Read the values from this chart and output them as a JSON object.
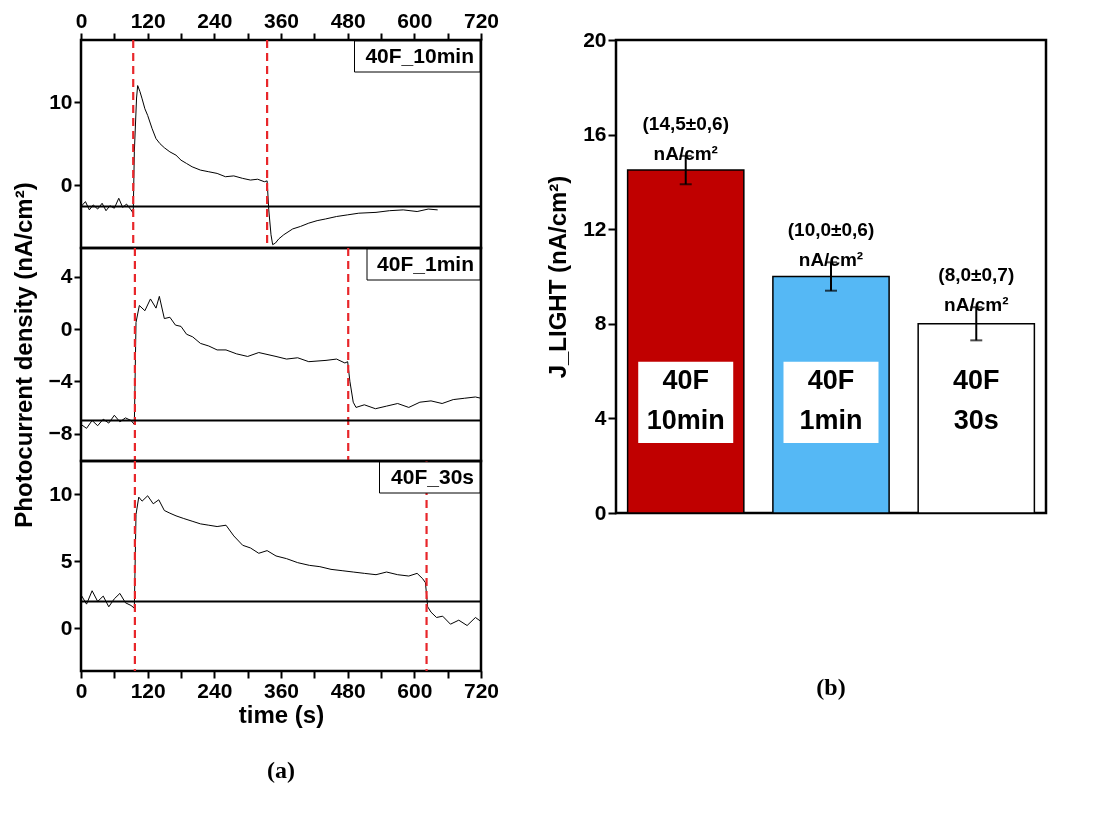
{
  "chart_data": [
    {
      "type": "line",
      "xlim": [
        0,
        720
      ],
      "ylim": [
        -7.6,
        17.5
      ],
      "yticks": [
        0,
        10
      ],
      "x2lim": [
        0,
        720
      ],
      "x2ticks": [
        0,
        {
          "value": 60,
          "label": null
        },
        120,
        {
          "value": 180,
          "label": null
        },
        240,
        {
          "value": 300,
          "label": null
        },
        360,
        {
          "value": 420,
          "label": null
        },
        480,
        {
          "value": 540,
          "label": null
        },
        600,
        {
          "value": 660,
          "label": null
        },
        720
      ],
      "tick_labels": "y",
      "grid": false,
      "line_style": "solid",
      "annotations": [
        "40F_10min"
      ],
      "ref_lines": [
        {
          "axis": "x",
          "value": 94,
          "color": "#e8262a",
          "line_style": "dashed"
        },
        {
          "axis": "x",
          "value": 335,
          "color": "#e8262a",
          "line_style": "dashed"
        },
        {
          "axis": "y",
          "value": -2.6,
          "color": "#000000",
          "line_style": "solid"
        }
      ],
      "series": [
        {
          "color": "#000000",
          "x": [
            0,
            8,
            15,
            22,
            30,
            38,
            45,
            52,
            60,
            68,
            75,
            82,
            90,
            94,
            96,
            100,
            102,
            106,
            110,
            115,
            120,
            128,
            135,
            142,
            150,
            160,
            171,
            180,
            190,
            200,
            215,
            230,
            245,
            260,
            275,
            291,
            305,
            318,
            330,
            335,
            338,
            342,
            345,
            350,
            356,
            365,
            381,
            395,
            410,
            425,
            440,
            460,
            480,
            500,
            531,
            555,
            580,
            605,
            625,
            642
          ],
          "values": [
            -2.6,
            -2.0,
            -3.0,
            -2.4,
            -2.9,
            -2.2,
            -3.1,
            -2.5,
            -2.8,
            -1.6,
            -2.7,
            -2.3,
            -3.0,
            -3.4,
            4.0,
            10.5,
            12.0,
            11.3,
            10.4,
            9.2,
            8.4,
            6.8,
            5.6,
            5.0,
            4.5,
            4.0,
            3.6,
            3.0,
            2.6,
            2.2,
            1.8,
            1.6,
            1.4,
            1.0,
            1.1,
            0.8,
            0.6,
            0.7,
            0.4,
            0.5,
            -3.0,
            -6.0,
            -7.2,
            -7.0,
            -6.5,
            -6.0,
            -5.3,
            -5.0,
            -4.6,
            -4.3,
            -4.1,
            -3.8,
            -3.6,
            -3.4,
            -3.3,
            -3.1,
            -3.0,
            -3.2,
            -2.9,
            -3.0
          ]
        }
      ]
    },
    {
      "type": "line",
      "xlim": [
        0,
        720
      ],
      "ylim": [
        -10.1,
        6.2
      ],
      "yticks": [
        -8,
        -4,
        0,
        4
      ],
      "tick_labels": "y",
      "grid": false,
      "line_style": "solid",
      "ylabel": "Photocurrent density (nA/cm²)",
      "annotations": [
        "40F_1min"
      ],
      "ref_lines": [
        {
          "axis": "x",
          "value": 97,
          "color": "#e8262a",
          "line_style": "dashed"
        },
        {
          "axis": "x",
          "value": 481,
          "color": "#e8262a",
          "line_style": "dashed"
        },
        {
          "axis": "y",
          "value": -7.0,
          "color": "#000000",
          "line_style": "solid"
        }
      ],
      "series": [
        {
          "color": "#000000",
          "x": [
            0,
            10,
            20,
            30,
            40,
            50,
            60,
            70,
            80,
            90,
            96,
            99,
            105,
            115,
            125,
            135,
            141,
            150,
            160,
            170,
            180,
            190,
            201,
            215,
            230,
            245,
            261,
            280,
            300,
            320,
            351,
            370,
            390,
            410,
            441,
            460,
            475,
            480,
            484,
            490,
            495,
            510,
            530,
            550,
            570,
            590,
            610,
            630,
            650,
            670,
            690,
            710,
            720
          ],
          "values": [
            -7.3,
            -7.6,
            -7.0,
            -7.4,
            -6.9,
            -7.2,
            -6.6,
            -7.1,
            -6.8,
            -7.0,
            -7.3,
            0.5,
            1.8,
            1.4,
            2.3,
            1.6,
            2.5,
            0.8,
            0.9,
            0.3,
            0.2,
            -0.4,
            -0.6,
            -1.1,
            -1.3,
            -1.6,
            -1.6,
            -1.9,
            -2.1,
            -1.8,
            -2.1,
            -2.3,
            -2.2,
            -2.5,
            -2.4,
            -2.3,
            -2.6,
            -2.5,
            -4.0,
            -5.6,
            -6.0,
            -5.8,
            -6.1,
            -5.9,
            -5.7,
            -6.0,
            -5.6,
            -5.5,
            -5.7,
            -5.4,
            -5.3,
            -5.2,
            -5.3
          ]
        }
      ]
    },
    {
      "type": "line",
      "xlim": [
        0,
        720
      ],
      "ylim": [
        -3.2,
        12.5
      ],
      "yticks": [
        0,
        5,
        10
      ],
      "xticks": [
        0,
        {
          "value": 60,
          "label": null
        },
        120,
        {
          "value": 180,
          "label": null
        },
        240,
        {
          "value": 300,
          "label": null
        },
        360,
        {
          "value": 420,
          "label": null
        },
        480,
        {
          "value": 540,
          "label": null
        },
        600,
        {
          "value": 660,
          "label": null
        },
        720
      ],
      "xlabel": "time (s)",
      "grid": false,
      "line_style": "solid",
      "annotations": [
        "40F_30s",
        "(a)"
      ],
      "ref_lines": [
        {
          "axis": "x",
          "value": 97,
          "color": "#e8262a",
          "line_style": "dashed"
        },
        {
          "axis": "x",
          "value": 622,
          "color": "#e8262a",
          "line_style": "dashed"
        },
        {
          "axis": "y",
          "value": 2.0,
          "color": "#000000",
          "line_style": "solid"
        }
      ],
      "series": [
        {
          "color": "#000000",
          "x": [
            0,
            10,
            20,
            30,
            40,
            50,
            60,
            70,
            80,
            90,
            96,
            99,
            104,
            110,
            120,
            130,
            140,
            150,
            160,
            171,
            185,
            200,
            215,
            230,
            245,
            261,
            275,
            291,
            305,
            320,
            335,
            351,
            370,
            390,
            411,
            430,
            450,
            470,
            490,
            510,
            531,
            550,
            570,
            590,
            605,
            615,
            620,
            624,
            630,
            640,
            651,
            665,
            680,
            695,
            710,
            720
          ],
          "values": [
            2.5,
            1.8,
            2.8,
            2.0,
            2.4,
            1.6,
            2.2,
            2.6,
            1.9,
            1.7,
            1.5,
            8.5,
            9.8,
            9.5,
            9.9,
            9.3,
            9.6,
            8.8,
            8.6,
            8.4,
            8.2,
            8.0,
            7.8,
            7.7,
            7.6,
            7.7,
            6.9,
            6.2,
            6.0,
            5.6,
            5.8,
            5.4,
            5.2,
            4.9,
            4.7,
            4.6,
            4.4,
            4.3,
            4.2,
            4.1,
            4.0,
            4.2,
            4.0,
            3.9,
            4.1,
            3.7,
            3.4,
            1.6,
            1.2,
            0.8,
            0.9,
            0.3,
            0.6,
            0.2,
            0.8,
            0.5
          ]
        }
      ]
    },
    {
      "type": "bar",
      "categories": [
        "40F 10min",
        "40F 1min",
        "40F 30s"
      ],
      "values": [
        14.5,
        10.0,
        8.0
      ],
      "errors": [
        0.6,
        0.6,
        0.7
      ],
      "colors": [
        "#c00000",
        "#55b8f5",
        "#ffffff"
      ],
      "value_labels": [
        "(14,5±0,6) nA/cm²",
        "(10,0±0,6) nA/cm²",
        "(8,0±0,7) nA/cm²"
      ],
      "ylim": [
        0,
        20
      ],
      "yticks": [
        0,
        4,
        8,
        12,
        16,
        20
      ],
      "ylabel": "J_LIGHT (nA/cm²)",
      "tick_labels": "y",
      "grid": false,
      "annotations": [
        "(b)"
      ]
    }
  ]
}
